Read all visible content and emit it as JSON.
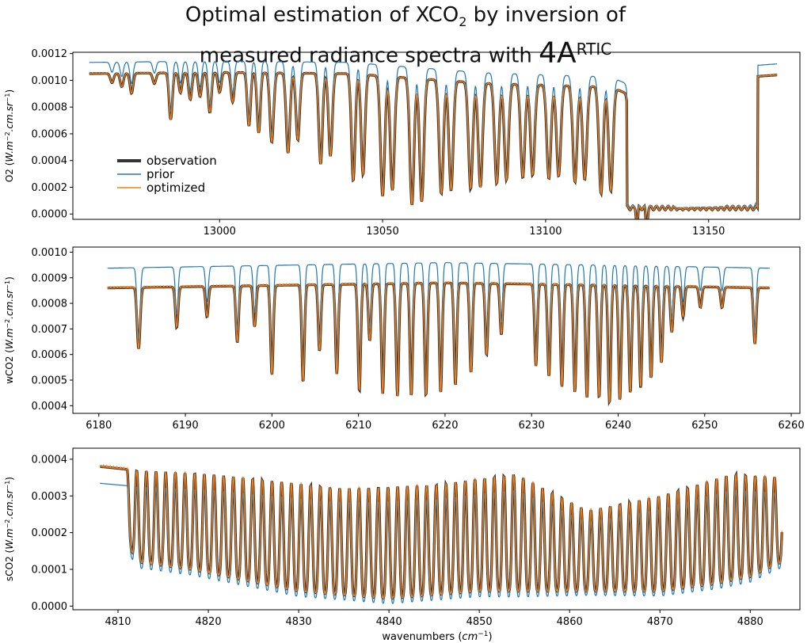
{
  "title": {
    "line1_prefix": "Optimal estimation of XCO",
    "line1_sub": "2",
    "line1_suffix": " by inversion of",
    "line2_prefix": "measured radiance spectra with ",
    "line2_big": "4A",
    "line2_sup": "RTIC"
  },
  "colors": {
    "observation": "#333333",
    "prior": "#1f77b4",
    "optimized": "#ff7f0e"
  },
  "xlabel": {
    "prefix": "wavenumbers (",
    "unit": "cm",
    "exp": "−1",
    "suffix": ")"
  },
  "legend": [
    "observation",
    "prior",
    "optimized"
  ],
  "chart_data": [
    {
      "type": "line",
      "name": "O2",
      "ylabel": {
        "name": "O2 (",
        "unit": "W.m",
        "exp1": "−2",
        "mid": ".cm.sr",
        "exp2": "−1",
        "end": ")"
      },
      "xlim": [
        12955,
        13178
      ],
      "ylim": [
        -4e-05,
        0.00121
      ],
      "xticks": [
        13000,
        13050,
        13100,
        13150
      ],
      "yticks": [
        "0.0000",
        "0.0002",
        "0.0004",
        "0.0006",
        "0.0008",
        "0.0010",
        "0.0012"
      ],
      "ytick_values": [
        0,
        0.0002,
        0.0004,
        0.0006,
        0.0008,
        0.001,
        0.0012
      ],
      "x_range": [
        12960,
        13171
      ],
      "lines": [
        {
          "c": 12967,
          "d": 7e-05,
          "w": 0.7
        },
        {
          "c": 12970,
          "d": 0.0001,
          "w": 0.7
        },
        {
          "c": 12973,
          "d": 0.00015,
          "w": 0.7
        },
        {
          "c": 12980,
          "d": 8e-05,
          "w": 0.7
        },
        {
          "c": 12985,
          "d": 0.00035,
          "w": 0.7
        },
        {
          "c": 12988,
          "d": 0.00015,
          "w": 0.7
        },
        {
          "c": 12991,
          "d": 0.0002,
          "w": 0.7
        },
        {
          "c": 12994,
          "d": 0.00018,
          "w": 0.7
        },
        {
          "c": 12997,
          "d": 0.0003,
          "w": 0.7
        },
        {
          "c": 13000,
          "d": 0.00015,
          "w": 0.7
        },
        {
          "c": 13004,
          "d": 0.00022,
          "w": 0.7
        },
        {
          "c": 13009,
          "d": 0.0004,
          "w": 0.7
        },
        {
          "c": 13012,
          "d": 0.00045,
          "w": 0.7
        },
        {
          "c": 13016,
          "d": 0.00052,
          "w": 0.8
        },
        {
          "c": 13021,
          "d": 0.0006,
          "w": 0.8
        },
        {
          "c": 13024,
          "d": 0.0005,
          "w": 0.8
        },
        {
          "c": 13031,
          "d": 0.00068,
          "w": 0.8
        },
        {
          "c": 13034,
          "d": 0.00062,
          "w": 0.8
        },
        {
          "c": 13041,
          "d": 0.0008,
          "w": 0.8
        },
        {
          "c": 13044,
          "d": 0.00075,
          "w": 0.8
        },
        {
          "c": 13050,
          "d": 0.0009,
          "w": 0.9
        },
        {
          "c": 13053,
          "d": 0.00085,
          "w": 0.9
        },
        {
          "c": 13059,
          "d": 0.00095,
          "w": 0.9
        },
        {
          "c": 13062,
          "d": 0.00092,
          "w": 0.9
        },
        {
          "c": 13068,
          "d": 0.00085,
          "w": 0.9
        },
        {
          "c": 13071,
          "d": 0.00082,
          "w": 0.9
        },
        {
          "c": 13077,
          "d": 0.0008,
          "w": 0.9
        },
        {
          "c": 13080,
          "d": 0.00078,
          "w": 0.9
        },
        {
          "c": 13085,
          "d": 0.00075,
          "w": 0.9
        },
        {
          "c": 13088,
          "d": 0.00072,
          "w": 0.9
        },
        {
          "c": 13093,
          "d": 0.0007,
          "w": 0.9
        },
        {
          "c": 13096,
          "d": 0.00068,
          "w": 0.9
        },
        {
          "c": 13101,
          "d": 0.0007,
          "w": 0.9
        },
        {
          "c": 13104,
          "d": 0.00068,
          "w": 0.9
        },
        {
          "c": 13109,
          "d": 0.00072,
          "w": 0.9
        },
        {
          "c": 13112,
          "d": 0.0007,
          "w": 0.9
        },
        {
          "c": 13117,
          "d": 0.0008,
          "w": 0.9
        },
        {
          "c": 13120,
          "d": 0.00078,
          "w": 0.9
        },
        {
          "c": 13126,
          "d": 0.0004,
          "w": 0.8
        },
        {
          "c": 13128,
          "d": 0.00035,
          "w": 0.8
        },
        {
          "c": 13131,
          "d": 0.0003,
          "w": 0.8
        }
      ],
      "regions": [
        {
          "a": 13125,
          "b": 13165,
          "level": 2e-05,
          "amp": 3e-05,
          "period": 1.8
        }
      ],
      "base": [
        [
          12960,
          0.00105
        ],
        [
          13000,
          0.00106
        ],
        [
          13040,
          0.00105
        ],
        [
          13080,
          0.00098
        ],
        [
          13120,
          0.00095
        ],
        [
          13125,
          0.0009
        ],
        [
          13127,
          0.0003
        ],
        [
          13140,
          4e-05
        ],
        [
          13155,
          5e-05
        ],
        [
          13160,
          0.0002
        ],
        [
          13163,
          0.00035
        ],
        [
          13165,
          0.00103
        ],
        [
          13171,
          0.00104
        ]
      ],
      "prior_scale": 1.08
    },
    {
      "type": "line",
      "name": "wCO2",
      "ylabel": {
        "name": "wCO2 (",
        "unit": "W.m",
        "exp1": "−2",
        "mid": ".cm.sr",
        "exp2": "−1",
        "end": ")"
      },
      "xlim": [
        6177,
        6261
      ],
      "ylim": [
        0.00037,
        0.00102
      ],
      "xticks": [
        6180,
        6190,
        6200,
        6210,
        6220,
        6230,
        6240,
        6250,
        6260
      ],
      "yticks": [
        "0.0004",
        "0.0005",
        "0.0006",
        "0.0007",
        "0.0008",
        "0.0009",
        "0.0010"
      ],
      "ytick_values": [
        0.0004,
        0.0005,
        0.0006,
        0.0007,
        0.0008,
        0.0009,
        0.001
      ],
      "x_range": [
        6181,
        6257.5
      ],
      "lines": [
        {
          "c": 6184.6,
          "d": 0.00024,
          "w": 0.25
        },
        {
          "c": 6189.0,
          "d": 0.00016,
          "w": 0.22
        },
        {
          "c": 6192.5,
          "d": 0.00012,
          "w": 0.22
        },
        {
          "c": 6196.0,
          "d": 0.00022,
          "w": 0.22
        },
        {
          "c": 6198.0,
          "d": 0.00016,
          "w": 0.22
        },
        {
          "c": 6200.0,
          "d": 0.00035,
          "w": 0.22
        },
        {
          "c": 6203.6,
          "d": 0.00038,
          "w": 0.22
        },
        {
          "c": 6205.5,
          "d": 0.00026,
          "w": 0.22
        },
        {
          "c": 6207.5,
          "d": 0.00035,
          "w": 0.22
        },
        {
          "c": 6210.1,
          "d": 0.00042,
          "w": 0.22
        },
        {
          "c": 6211.3,
          "d": 0.00022,
          "w": 0.22
        },
        {
          "c": 6212.8,
          "d": 0.00043,
          "w": 0.22
        },
        {
          "c": 6214.5,
          "d": 0.00044,
          "w": 0.22
        },
        {
          "c": 6216.1,
          "d": 0.00044,
          "w": 0.22
        },
        {
          "c": 6217.8,
          "d": 0.00044,
          "w": 0.22
        },
        {
          "c": 6219.5,
          "d": 0.00043,
          "w": 0.22
        },
        {
          "c": 6221.2,
          "d": 0.0004,
          "w": 0.22
        },
        {
          "c": 6223.0,
          "d": 0.00035,
          "w": 0.22
        },
        {
          "c": 6224.8,
          "d": 0.00028,
          "w": 0.22
        },
        {
          "c": 6226.5,
          "d": 0.0002,
          "w": 0.22
        },
        {
          "c": 6230.5,
          "d": 0.00032,
          "w": 0.22
        },
        {
          "c": 6232.0,
          "d": 0.00036,
          "w": 0.22
        },
        {
          "c": 6233.5,
          "d": 0.0004,
          "w": 0.22
        },
        {
          "c": 6235.0,
          "d": 0.00042,
          "w": 0.22
        },
        {
          "c": 6236.4,
          "d": 0.00044,
          "w": 0.22
        },
        {
          "c": 6237.8,
          "d": 0.00044,
          "w": 0.22
        },
        {
          "c": 6239.0,
          "d": 0.00046,
          "w": 0.22
        },
        {
          "c": 6240.2,
          "d": 0.00045,
          "w": 0.22
        },
        {
          "c": 6241.4,
          "d": 0.00042,
          "w": 0.22
        },
        {
          "c": 6242.6,
          "d": 0.0004,
          "w": 0.22
        },
        {
          "c": 6243.8,
          "d": 0.00036,
          "w": 0.22
        },
        {
          "c": 6245.0,
          "d": 0.0003,
          "w": 0.22
        },
        {
          "c": 6246.2,
          "d": 0.00018,
          "w": 0.22
        },
        {
          "c": 6247.5,
          "d": 0.00012,
          "w": 0.22
        },
        {
          "c": 6249.5,
          "d": 8e-05,
          "w": 0.22
        },
        {
          "c": 6252.0,
          "d": 8e-05,
          "w": 0.22
        },
        {
          "c": 6255.8,
          "d": 0.00022,
          "w": 0.22
        }
      ],
      "regions": [],
      "base": [
        [
          6181,
          0.00086
        ],
        [
          6200,
          0.00087
        ],
        [
          6220,
          0.00088
        ],
        [
          6240,
          0.00087
        ],
        [
          6257.5,
          0.00086
        ]
      ],
      "prior_scale": 1.09
    },
    {
      "type": "line",
      "name": "sCO2",
      "ylabel": {
        "name": "sCO2 (",
        "unit": "W.m",
        "exp1": "−2",
        "mid": ".cm.sr",
        "exp2": "−1",
        "end": ")"
      },
      "xlim": [
        4805,
        4885.5
      ],
      "ylim": [
        -1e-05,
        0.00043
      ],
      "xticks": [
        4810,
        4820,
        4830,
        4840,
        4850,
        4860,
        4870,
        4880
      ],
      "yticks": [
        "0.0000",
        "0.0001",
        "0.0002",
        "0.0003",
        "0.0004"
      ],
      "ytick_values": [
        0,
        0.0001,
        0.0002,
        0.0003,
        0.0004
      ],
      "x_range": [
        4808,
        4883.5
      ],
      "lines": [],
      "regions": [
        {
          "a": 4811,
          "b": 4883.5,
          "level": 0,
          "amp": 0,
          "period": 1.0
        }
      ],
      "base": [
        [
          4808,
          0.00038
        ],
        [
          4812,
          0.00037
        ],
        [
          4820,
          0.00036
        ],
        [
          4835,
          0.00032
        ],
        [
          4845,
          0.00033
        ],
        [
          4854,
          0.00036
        ],
        [
          4862,
          0.00026
        ],
        [
          4870,
          0.0003
        ],
        [
          4878,
          0.00036
        ],
        [
          4883.5,
          0.00035
        ]
      ],
      "floor": [
        [
          4808,
          0.00036
        ],
        [
          4812,
          0.00012
        ],
        [
          4818,
          0.0001
        ],
        [
          4830,
          4e-05
        ],
        [
          4840,
          2e-05
        ],
        [
          4850,
          4e-05
        ],
        [
          4860,
          4e-05
        ],
        [
          4870,
          4e-05
        ],
        [
          4876,
          6e-05
        ],
        [
          4880,
          8e-05
        ],
        [
          4883.5,
          0.00012
        ]
      ],
      "prior_scale": 0.88
    }
  ]
}
